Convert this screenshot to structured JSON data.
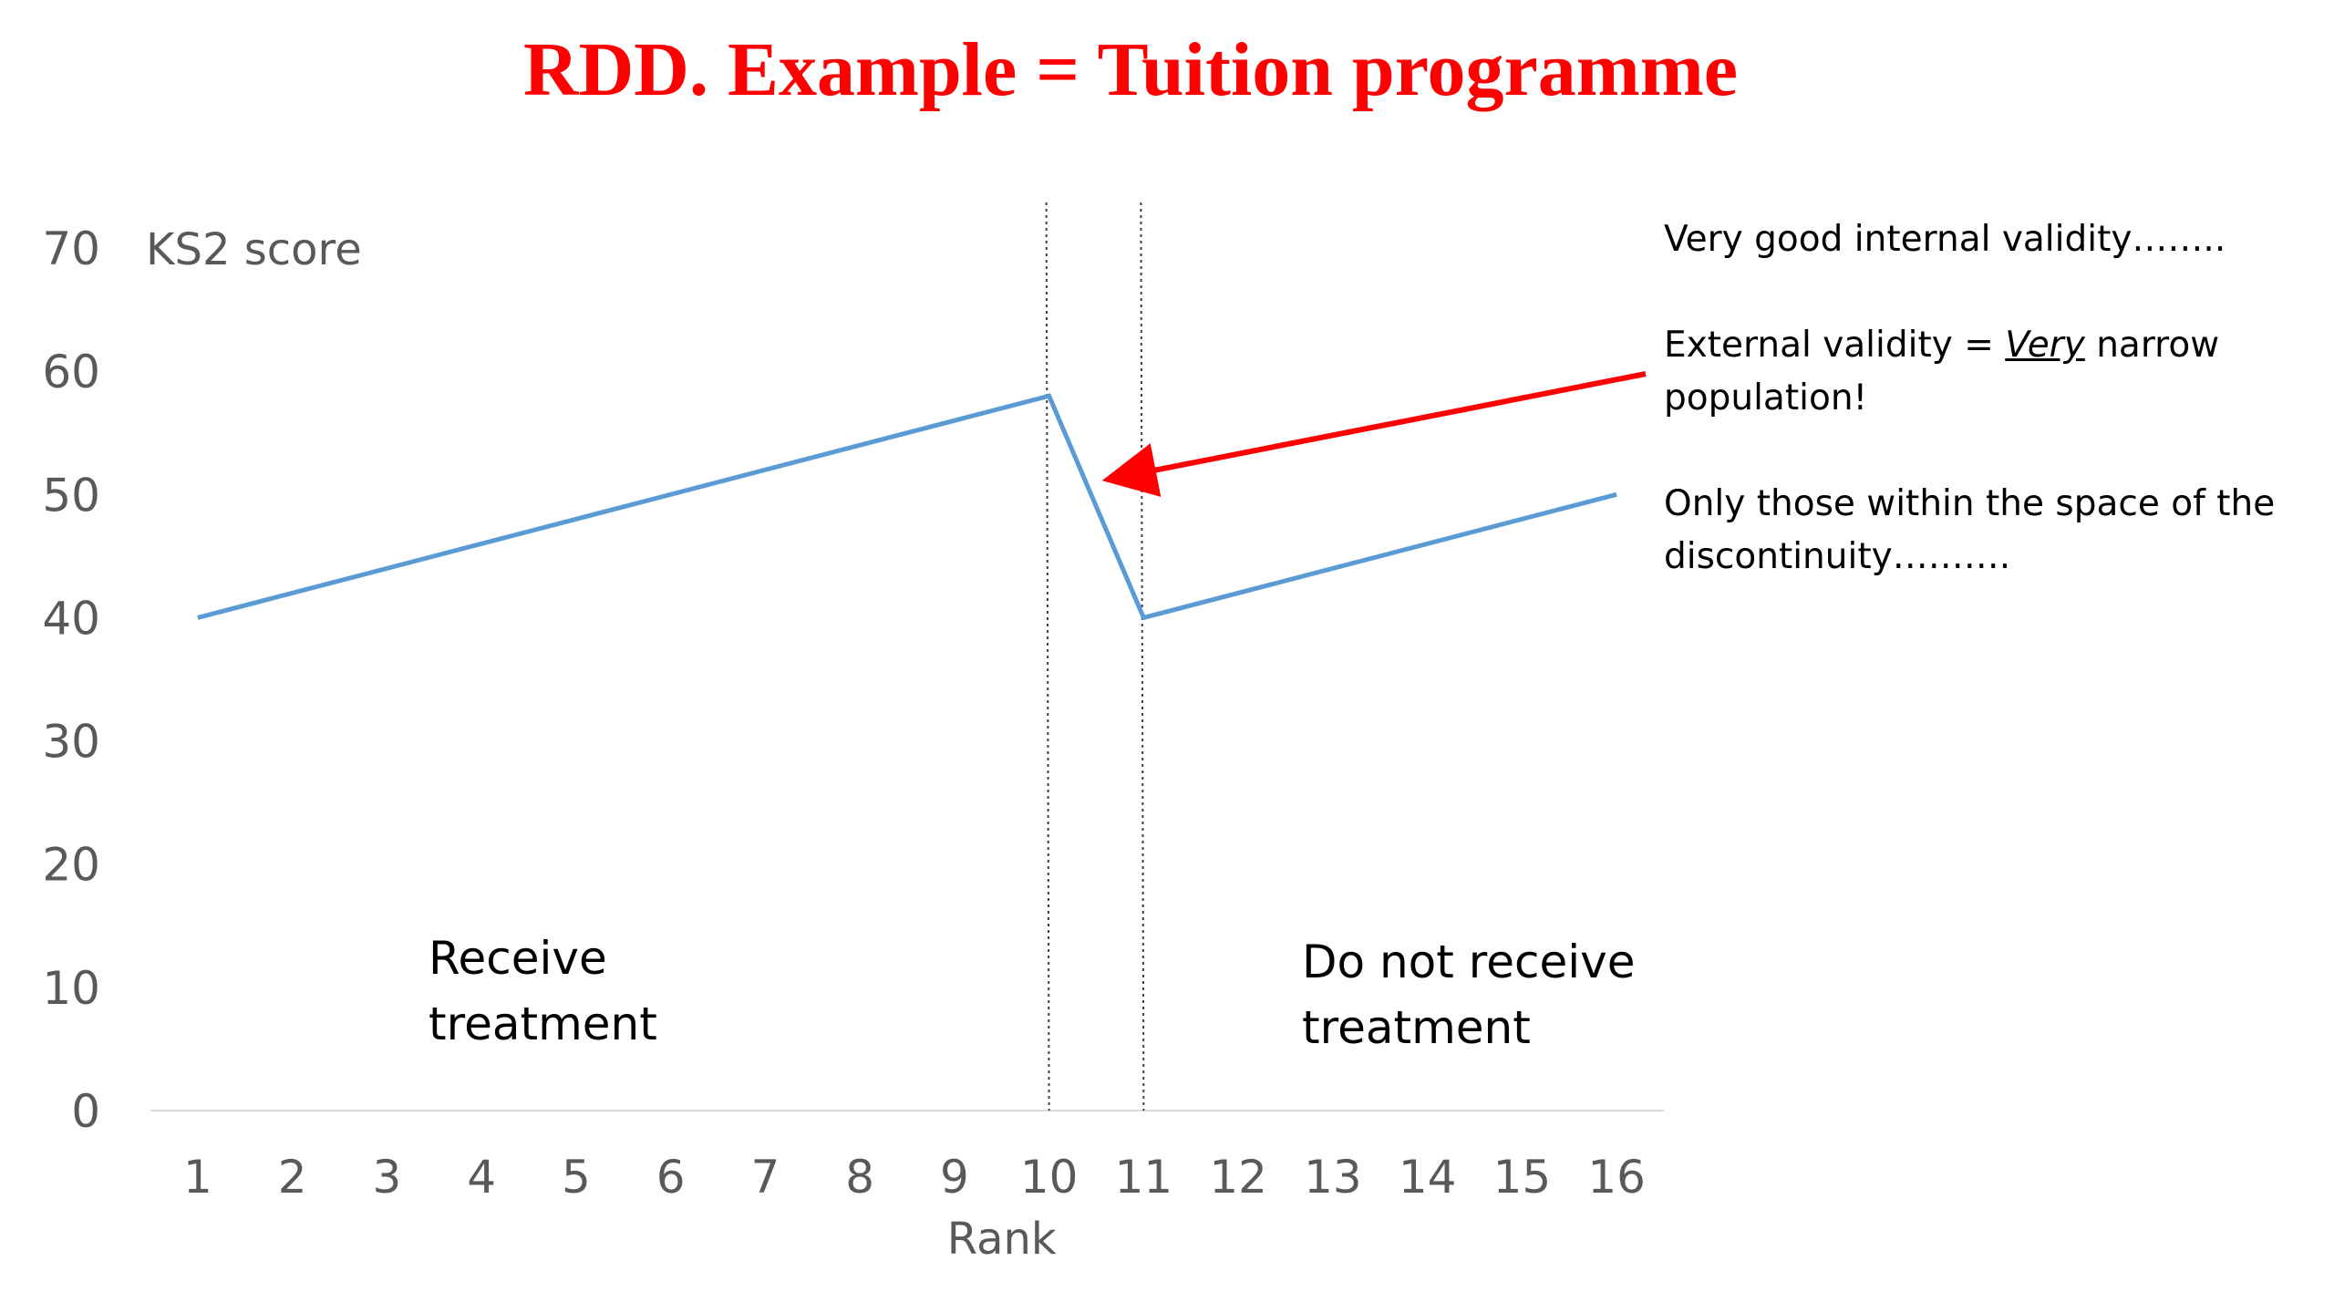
{
  "title": "RDD. Example = Tuition programme",
  "notes": {
    "internal": "Very good internal validity……..",
    "external_prefix": "External validity = ",
    "external_emphasis": "Very",
    "external_suffix": " narrow population!",
    "only": "Only  those within the space of the discontinuity………."
  },
  "colors": {
    "title": "#ff0000",
    "series": "#5b9bd5",
    "arrow": "#ff0000",
    "axis_text": "#595959",
    "cutoff_lines": "#404040"
  },
  "chart_data": {
    "type": "line",
    "x": [
      1,
      10,
      11,
      16
    ],
    "categories": [
      "1",
      "2",
      "3",
      "4",
      "5",
      "6",
      "7",
      "8",
      "9",
      "10",
      "11",
      "12",
      "13",
      "14",
      "15",
      "16"
    ],
    "series": [
      {
        "values": [
          40,
          58,
          40,
          50
        ]
      }
    ],
    "xlabel": "Rank",
    "ylabel": "KS2 score",
    "ylim": [
      0,
      70
    ],
    "yticks": [
      0,
      10,
      20,
      30,
      40,
      50,
      60,
      70
    ],
    "cutoffs": [
      10,
      11
    ],
    "annotations": {
      "left_region": [
        "Receive",
        "treatment"
      ],
      "right_region": [
        "Do not receive",
        "treatment"
      ]
    },
    "arrow_target": {
      "x": 10.5,
      "y": 51
    },
    "grid": false,
    "legend": "none"
  }
}
